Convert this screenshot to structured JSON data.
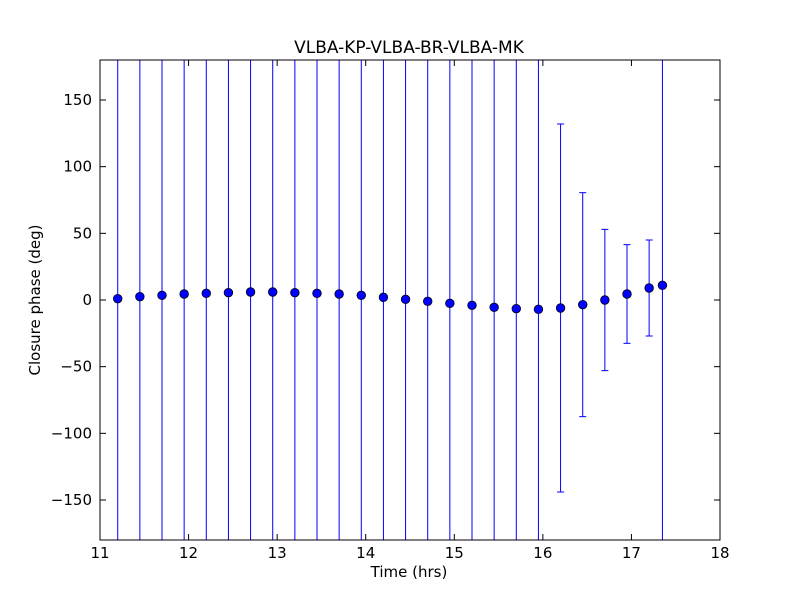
{
  "chart_data": {
    "type": "scatter",
    "title": "VLBA-KP-VLBA-BR-VLBA-MK",
    "xlabel": "Time (hrs)",
    "ylabel": "Closure phase (deg)",
    "xlim": [
      11,
      18
    ],
    "ylim": [
      -180,
      180
    ],
    "xticks": [
      11,
      12,
      13,
      14,
      15,
      16,
      17,
      18
    ],
    "xtick_labels": [
      "11",
      "12",
      "13",
      "14",
      "15",
      "16",
      "17",
      "18"
    ],
    "yticks": [
      -150,
      -100,
      -50,
      0,
      50,
      100,
      150
    ],
    "ytick_labels": [
      "−150",
      "−100",
      "−50",
      "0",
      "50",
      "100",
      "150"
    ],
    "grid": false,
    "series": [
      {
        "color": "#0000ff",
        "marker": "circle",
        "points": [
          {
            "x": 11.2,
            "y": 1.0,
            "err": 999
          },
          {
            "x": 11.45,
            "y": 2.5,
            "err": 999
          },
          {
            "x": 11.7,
            "y": 3.5,
            "err": 999
          },
          {
            "x": 11.95,
            "y": 4.5,
            "err": 999
          },
          {
            "x": 12.2,
            "y": 5.0,
            "err": 999
          },
          {
            "x": 12.45,
            "y": 5.5,
            "err": 999
          },
          {
            "x": 12.7,
            "y": 6.0,
            "err": 999
          },
          {
            "x": 12.95,
            "y": 6.0,
            "err": 999
          },
          {
            "x": 13.2,
            "y": 5.5,
            "err": 999
          },
          {
            "x": 13.45,
            "y": 5.0,
            "err": 999
          },
          {
            "x": 13.7,
            "y": 4.5,
            "err": 999
          },
          {
            "x": 13.95,
            "y": 3.5,
            "err": 999
          },
          {
            "x": 14.2,
            "y": 2.0,
            "err": 999
          },
          {
            "x": 14.45,
            "y": 0.5,
            "err": 999
          },
          {
            "x": 14.7,
            "y": -1.0,
            "err": 999
          },
          {
            "x": 14.95,
            "y": -2.5,
            "err": 999
          },
          {
            "x": 15.2,
            "y": -4.0,
            "err": 999
          },
          {
            "x": 15.45,
            "y": -5.5,
            "err": 999
          },
          {
            "x": 15.7,
            "y": -6.5,
            "err": 999
          },
          {
            "x": 15.95,
            "y": -7.0,
            "err": 999
          },
          {
            "x": 16.2,
            "y": -6.0,
            "err": 138
          },
          {
            "x": 16.45,
            "y": -3.5,
            "err": 84
          },
          {
            "x": 16.7,
            "y": 0.0,
            "err": 53
          },
          {
            "x": 16.95,
            "y": 4.5,
            "err": 37
          },
          {
            "x": 17.2,
            "y": 9.0,
            "err": 36
          },
          {
            "x": 17.35,
            "y": 11.0,
            "err": 999
          }
        ]
      }
    ]
  }
}
